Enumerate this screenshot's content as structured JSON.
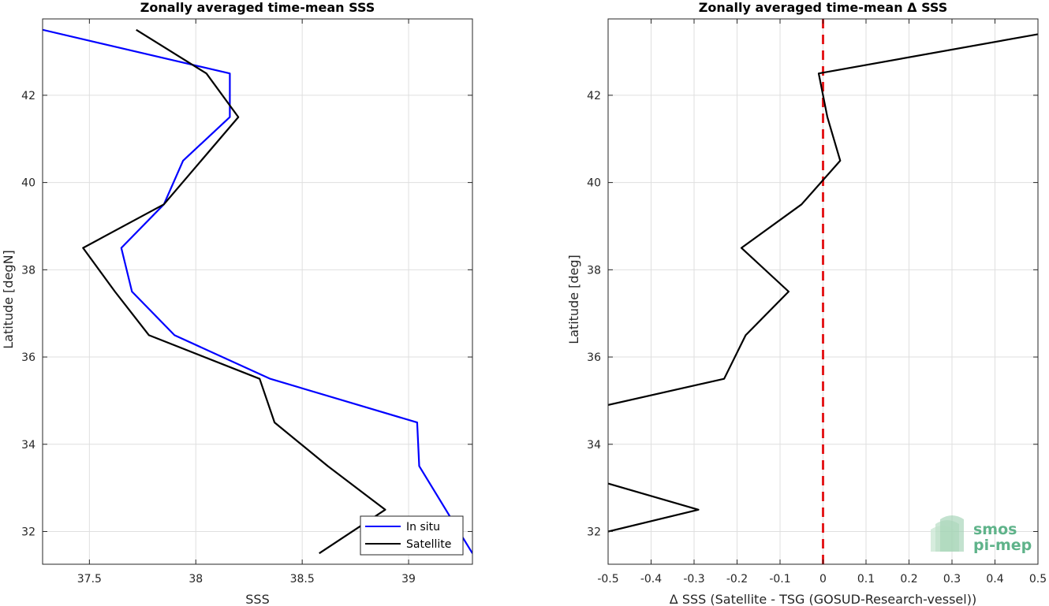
{
  "chart_data": [
    {
      "type": "line",
      "title": "Zonally averaged time-mean SSS",
      "xlabel": "SSS",
      "ylabel": "Latitude [degN]",
      "xlim": [
        37.28,
        39.3
      ],
      "ylim": [
        31.25,
        43.75
      ],
      "xticks": [
        37.5,
        38,
        38.5,
        39
      ],
      "xtick_labels": [
        "37.5",
        "38",
        "38.5",
        "39"
      ],
      "yticks": [
        32,
        34,
        36,
        38,
        40,
        42
      ],
      "ytick_labels": [
        "32",
        "34",
        "36",
        "38",
        "40",
        "42"
      ],
      "grid": true,
      "legend_position": "bottom-right",
      "series": [
        {
          "name": "In situ",
          "color": "#0000ff",
          "x": [
            37.28,
            38.16,
            38.16,
            37.94,
            37.85,
            37.65,
            37.7,
            37.9,
            38.35,
            39.04,
            39.05,
            39.2,
            39.3
          ],
          "y": [
            43.5,
            42.5,
            41.5,
            40.5,
            39.5,
            38.5,
            37.5,
            36.5,
            35.5,
            34.5,
            33.5,
            32.3,
            31.5
          ]
        },
        {
          "name": "Satellite",
          "color": "#000000",
          "x": [
            37.72,
            38.05,
            38.2,
            37.85,
            37.47,
            37.62,
            37.78,
            38.3,
            38.37,
            38.62,
            38.89,
            38.58
          ],
          "y": [
            43.5,
            42.5,
            41.5,
            39.5,
            38.5,
            37.5,
            36.5,
            35.5,
            34.5,
            33.5,
            32.5,
            31.5
          ]
        }
      ]
    },
    {
      "type": "line",
      "title": "Zonally averaged time-mean Δ SSS",
      "xlabel": "Δ SSS (Satellite - TSG (GOSUD-Research-vessel))",
      "ylabel": "Latitude [deg]",
      "xlim": [
        -0.5,
        0.5
      ],
      "ylim": [
        31.25,
        43.75
      ],
      "xticks": [
        -0.5,
        -0.4,
        -0.3,
        -0.2,
        -0.1,
        0,
        0.1,
        0.2,
        0.3,
        0.4,
        0.5
      ],
      "xtick_labels": [
        "-0.5",
        "-0.4",
        "-0.3",
        "-0.2",
        "-0.1",
        "0",
        "0.1",
        "0.2",
        "0.3",
        "0.4",
        "0.5"
      ],
      "yticks": [
        32,
        34,
        36,
        38,
        40,
        42
      ],
      "ytick_labels": [
        "32",
        "34",
        "36",
        "38",
        "40",
        "42"
      ],
      "grid": true,
      "reference_line": {
        "x": 0,
        "color": "#e41a1c",
        "style": "dashed"
      },
      "series": [
        {
          "segments": [
            {
              "x": [
                0.5,
                -0.01,
                0.0,
                0.01,
                0.04,
                -0.05,
                -0.19,
                -0.08,
                -0.18,
                -0.23,
                -0.5
              ],
              "y": [
                43.4,
                42.5,
                42.0,
                41.5,
                40.5,
                39.5,
                38.5,
                37.5,
                36.5,
                35.5,
                34.9
              ]
            },
            {
              "x": [
                -0.5,
                -0.29,
                -0.5
              ],
              "y": [
                33.1,
                32.5,
                32.0
              ]
            }
          ],
          "color": "#000000"
        }
      ]
    }
  ],
  "logo": {
    "line1": "smos",
    "line2": "pi-mep"
  }
}
